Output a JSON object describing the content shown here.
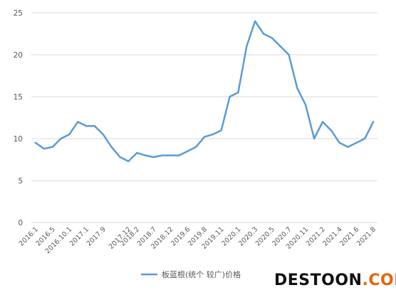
{
  "chart_data": {
    "type": "line",
    "title": "",
    "xlabel": "",
    "ylabel": "",
    "ylim": [
      0,
      25
    ],
    "yticks": [
      0,
      5,
      10,
      15,
      20,
      25
    ],
    "grid": "horizontal",
    "legend_position": "bottom",
    "x": [
      "2016.1",
      "2016.3",
      "2016.5",
      "2016.8",
      "2016.10.1",
      "2016.12",
      "2017.1",
      "2017.3",
      "2017.9",
      "2017.10",
      "2017.11",
      "2017.12",
      "2018.2",
      "2018.4",
      "2018.7",
      "2018.10",
      "2018.12",
      "2019.3",
      "2019.6",
      "2019.7",
      "2019.8",
      "2019.9",
      "2019.11",
      "2019.12",
      "2020.1",
      "2020.2",
      "2020.3",
      "2020.4",
      "2020.5",
      "2020.6",
      "2020.7",
      "2020.9",
      "2020.11",
      "2020.12",
      "2021.2",
      "2021.3",
      "2021.4",
      "2021.5",
      "2021.6",
      "2021.7",
      "2021.8"
    ],
    "xtick_labels": [
      "2016.1",
      "2016.5",
      "2016.10.1",
      "2017.1",
      "2017.9",
      "2017.12",
      "2018.2",
      "2018.7",
      "2018.12",
      "2019.6",
      "2019.8",
      "2019.11",
      "2020.1",
      "2020.3",
      "2020.5",
      "2020.7",
      "2020.11",
      "2021.2",
      "2021.4",
      "2021.6",
      "2021.8"
    ],
    "series": [
      {
        "name": "板蓝根(统个 较广)价格",
        "color": "#5b9bd5",
        "values": [
          9.5,
          8.8,
          9.0,
          10.0,
          10.5,
          12.0,
          11.5,
          11.5,
          10.5,
          9.0,
          7.8,
          7.3,
          8.3,
          8.0,
          7.8,
          8.0,
          8.0,
          8.0,
          8.5,
          9.0,
          10.2,
          10.5,
          11.0,
          15.0,
          15.5,
          21.0,
          24.0,
          22.5,
          22.0,
          21.0,
          20.0,
          16.0,
          14.0,
          10.0,
          12.0,
          11.0,
          9.5,
          9.0,
          9.5,
          10.0,
          12.0
        ]
      }
    ]
  },
  "watermark": {
    "text_main": "DESTOON",
    "text_suffix": ".COM",
    "color_main": "#111111",
    "color_suffix": "#e8640c"
  }
}
